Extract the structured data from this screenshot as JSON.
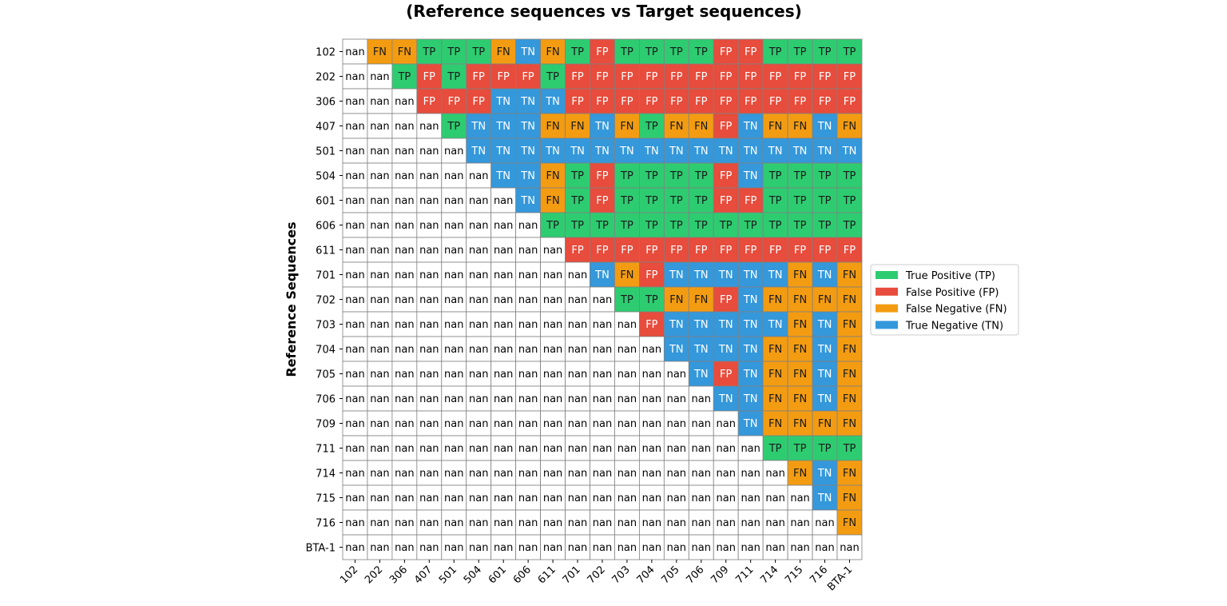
{
  "chart_data": {
    "type": "heatmap",
    "title_lines": [
      "(Reference sequences vs Target sequences)"
    ],
    "ylabel": "Reference Sequences",
    "xlabel": "",
    "row_labels": [
      "102",
      "202",
      "306",
      "407",
      "501",
      "504",
      "601",
      "606",
      "611",
      "701",
      "702",
      "703",
      "704",
      "705",
      "706",
      "709",
      "711",
      "714",
      "715",
      "716",
      "BTA-1"
    ],
    "col_labels": [
      "102",
      "202",
      "306",
      "407",
      "501",
      "504",
      "601",
      "606",
      "611",
      "701",
      "702",
      "703",
      "704",
      "705",
      "706",
      "709",
      "711",
      "714",
      "715",
      "716",
      "BTA-1"
    ],
    "cells": [
      [
        "nan",
        "FN",
        "FN",
        "TP",
        "TP",
        "TP",
        "FN",
        "TN",
        "FN",
        "TP",
        "FP",
        "TP",
        "TP",
        "TP",
        "TP",
        "FP",
        "FP",
        "TP",
        "TP",
        "TP",
        "TP"
      ],
      [
        "nan",
        "nan",
        "TP",
        "FP",
        "TP",
        "FP",
        "FP",
        "FP",
        "TP",
        "FP",
        "FP",
        "FP",
        "FP",
        "FP",
        "FP",
        "FP",
        "FP",
        "FP",
        "FP",
        "FP",
        "FP"
      ],
      [
        "nan",
        "nan",
        "nan",
        "FP",
        "FP",
        "FP",
        "TN",
        "TN",
        "TN",
        "FP",
        "FP",
        "FP",
        "FP",
        "FP",
        "FP",
        "FP",
        "FP",
        "FP",
        "FP",
        "FP",
        "FP"
      ],
      [
        "nan",
        "nan",
        "nan",
        "nan",
        "TP",
        "TN",
        "TN",
        "TN",
        "FN",
        "FN",
        "TN",
        "FN",
        "TP",
        "FN",
        "FN",
        "FP",
        "TN",
        "FN",
        "FN",
        "TN",
        "FN"
      ],
      [
        "nan",
        "nan",
        "nan",
        "nan",
        "nan",
        "TN",
        "TN",
        "TN",
        "TN",
        "TN",
        "TN",
        "TN",
        "TN",
        "TN",
        "TN",
        "TN",
        "TN",
        "TN",
        "TN",
        "TN",
        "TN"
      ],
      [
        "nan",
        "nan",
        "nan",
        "nan",
        "nan",
        "nan",
        "TN",
        "TN",
        "FN",
        "TP",
        "FP",
        "TP",
        "TP",
        "TP",
        "TP",
        "FP",
        "TN",
        "TP",
        "TP",
        "TP",
        "TP"
      ],
      [
        "nan",
        "nan",
        "nan",
        "nan",
        "nan",
        "nan",
        "nan",
        "TN",
        "FN",
        "TP",
        "FP",
        "TP",
        "TP",
        "TP",
        "TP",
        "FP",
        "FP",
        "TP",
        "TP",
        "TP",
        "TP"
      ],
      [
        "nan",
        "nan",
        "nan",
        "nan",
        "nan",
        "nan",
        "nan",
        "nan",
        "TP",
        "TP",
        "TP",
        "TP",
        "TP",
        "TP",
        "TP",
        "TP",
        "TP",
        "TP",
        "TP",
        "TP",
        "TP"
      ],
      [
        "nan",
        "nan",
        "nan",
        "nan",
        "nan",
        "nan",
        "nan",
        "nan",
        "nan",
        "FP",
        "FP",
        "FP",
        "FP",
        "FP",
        "FP",
        "FP",
        "FP",
        "FP",
        "FP",
        "FP",
        "FP"
      ],
      [
        "nan",
        "nan",
        "nan",
        "nan",
        "nan",
        "nan",
        "nan",
        "nan",
        "nan",
        "nan",
        "TN",
        "FN",
        "FP",
        "TN",
        "TN",
        "TN",
        "TN",
        "TN",
        "FN",
        "TN",
        "FN"
      ],
      [
        "nan",
        "nan",
        "nan",
        "nan",
        "nan",
        "nan",
        "nan",
        "nan",
        "nan",
        "nan",
        "nan",
        "TP",
        "TP",
        "FN",
        "FN",
        "FP",
        "TN",
        "FN",
        "FN",
        "FN",
        "FN"
      ],
      [
        "nan",
        "nan",
        "nan",
        "nan",
        "nan",
        "nan",
        "nan",
        "nan",
        "nan",
        "nan",
        "nan",
        "nan",
        "FP",
        "TN",
        "TN",
        "TN",
        "TN",
        "TN",
        "FN",
        "TN",
        "FN"
      ],
      [
        "nan",
        "nan",
        "nan",
        "nan",
        "nan",
        "nan",
        "nan",
        "nan",
        "nan",
        "nan",
        "nan",
        "nan",
        "nan",
        "TN",
        "TN",
        "TN",
        "TN",
        "FN",
        "FN",
        "TN",
        "FN"
      ],
      [
        "nan",
        "nan",
        "nan",
        "nan",
        "nan",
        "nan",
        "nan",
        "nan",
        "nan",
        "nan",
        "nan",
        "nan",
        "nan",
        "nan",
        "TN",
        "FP",
        "TN",
        "FN",
        "FN",
        "TN",
        "FN"
      ],
      [
        "nan",
        "nan",
        "nan",
        "nan",
        "nan",
        "nan",
        "nan",
        "nan",
        "nan",
        "nan",
        "nan",
        "nan",
        "nan",
        "nan",
        "nan",
        "TN",
        "TN",
        "FN",
        "FN",
        "TN",
        "FN"
      ],
      [
        "nan",
        "nan",
        "nan",
        "nan",
        "nan",
        "nan",
        "nan",
        "nan",
        "nan",
        "nan",
        "nan",
        "nan",
        "nan",
        "nan",
        "nan",
        "nan",
        "TN",
        "FN",
        "FN",
        "FN",
        "FN"
      ],
      [
        "nan",
        "nan",
        "nan",
        "nan",
        "nan",
        "nan",
        "nan",
        "nan",
        "nan",
        "nan",
        "nan",
        "nan",
        "nan",
        "nan",
        "nan",
        "nan",
        "nan",
        "TP",
        "TP",
        "TP",
        "TP"
      ],
      [
        "nan",
        "nan",
        "nan",
        "nan",
        "nan",
        "nan",
        "nan",
        "nan",
        "nan",
        "nan",
        "nan",
        "nan",
        "nan",
        "nan",
        "nan",
        "nan",
        "nan",
        "nan",
        "FN",
        "TN",
        "FN"
      ],
      [
        "nan",
        "nan",
        "nan",
        "nan",
        "nan",
        "nan",
        "nan",
        "nan",
        "nan",
        "nan",
        "nan",
        "nan",
        "nan",
        "nan",
        "nan",
        "nan",
        "nan",
        "nan",
        "nan",
        "TN",
        "FN"
      ],
      [
        "nan",
        "nan",
        "nan",
        "nan",
        "nan",
        "nan",
        "nan",
        "nan",
        "nan",
        "nan",
        "nan",
        "nan",
        "nan",
        "nan",
        "nan",
        "nan",
        "nan",
        "nan",
        "nan",
        "nan",
        "FN"
      ],
      [
        "nan",
        "nan",
        "nan",
        "nan",
        "nan",
        "nan",
        "nan",
        "nan",
        "nan",
        "nan",
        "nan",
        "nan",
        "nan",
        "nan",
        "nan",
        "nan",
        "nan",
        "nan",
        "nan",
        "nan",
        "nan"
      ]
    ],
    "category_colors": {
      "TP": "#2ecc71",
      "FP": "#e74c3c",
      "FN": "#f39c12",
      "TN": "#3498db",
      "nan": "#ffffff"
    },
    "category_text_colors": {
      "TP": "#1a1a1a",
      "FP": "#ffffff",
      "FN": "#1a1a1a",
      "TN": "#ffffff",
      "nan": "#000000"
    },
    "grid_color": "#808080",
    "legend": {
      "placement": "center-right",
      "entries": [
        {
          "key": "TP",
          "label": "True Positive (TP)"
        },
        {
          "key": "FP",
          "label": "False Positive (FP)"
        },
        {
          "key": "FN",
          "label": "False Negative (FN)"
        },
        {
          "key": "TN",
          "label": "True Negative (TN)"
        }
      ]
    }
  }
}
